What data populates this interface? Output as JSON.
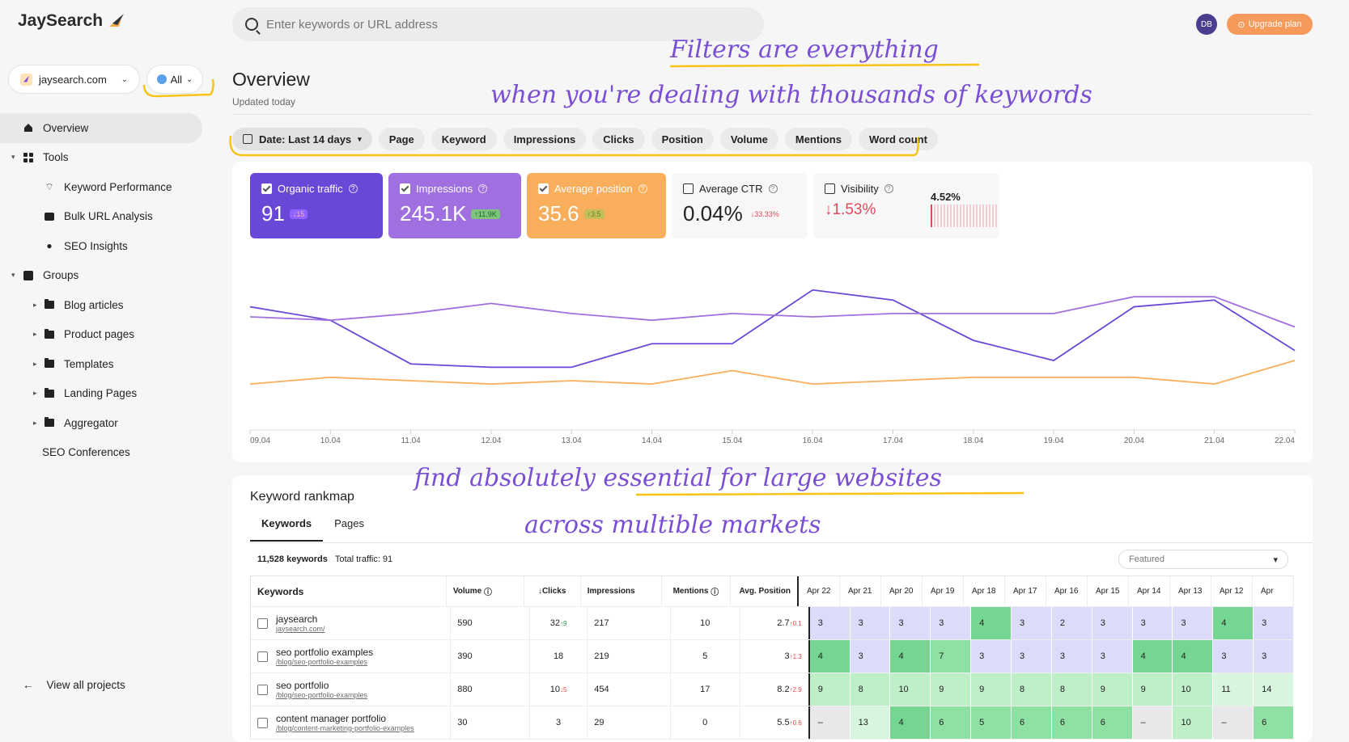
{
  "app": {
    "name": "JaySearch"
  },
  "project": {
    "name": "jaysearch.com",
    "scope": "All"
  },
  "search": {
    "placeholder": "Enter keywords or URL address"
  },
  "user": {
    "initials": "DB",
    "upgrade": "Upgrade plan"
  },
  "nav": {
    "overview": "Overview",
    "tools": "Tools",
    "keyword_performance": "Keyword Performance",
    "bulk_url": "Bulk URL Analysis",
    "seo_insights": "SEO Insights",
    "groups": "Groups",
    "blog": "Blog articles",
    "product": "Product pages",
    "templates": "Templates",
    "landing": "Landing Pages",
    "aggregator": "Aggregator",
    "conferences": "SEO Conferences",
    "view_all": "View all projects"
  },
  "page": {
    "title": "Overview",
    "updated": "Updated today"
  },
  "filters": {
    "date": "Date: Last 14 days",
    "items": [
      "Page",
      "Keyword",
      "Impressions",
      "Clicks",
      "Position",
      "Volume",
      "Mentions",
      "Word count"
    ]
  },
  "metrics": {
    "organic": {
      "label": "Organic traffic",
      "value": "91",
      "delta": "↓15"
    },
    "impressions": {
      "label": "Impressions",
      "value": "245.1K",
      "delta": "↑11.9K"
    },
    "position": {
      "label": "Average position",
      "value": "35.6",
      "delta": "↑3.5"
    },
    "ctr": {
      "label": "Average CTR",
      "value": "0.04%",
      "delta": "↓33.33%"
    },
    "visibility": {
      "label": "Visibility",
      "value": "↓1.53%",
      "level": "4.52%"
    }
  },
  "colors": {
    "organic": "#6a48d7",
    "impressions": "#a070e0",
    "position": "#f9ae5b",
    "red": "#e2485a"
  },
  "chart_data": {
    "type": "line",
    "categories": [
      "09.04",
      "10.04",
      "11.04",
      "12.04",
      "13.04",
      "14.04",
      "15.04",
      "16.04",
      "17.04",
      "18.04",
      "19.04",
      "20.04",
      "21.04",
      "22.04"
    ],
    "series": [
      {
        "name": "Organic traffic",
        "values": [
          95,
          91,
          78,
          77,
          77,
          84,
          84,
          100,
          97,
          85,
          79,
          95,
          97,
          82
        ]
      },
      {
        "name": "Impressions",
        "values": [
          92,
          91,
          93,
          96,
          93,
          91,
          93,
          92,
          93,
          93,
          93,
          98,
          98,
          89
        ]
      },
      {
        "name": "Average position",
        "values": [
          72,
          74,
          73,
          72,
          73,
          72,
          76,
          72,
          73,
          74,
          74,
          74,
          72,
          79
        ]
      }
    ],
    "ylim": [
      60,
      105
    ]
  },
  "rankmap": {
    "title": "Keyword rankmap",
    "tabs": [
      "Keywords",
      "Pages"
    ],
    "count": "11,528 keywords",
    "traffic": "Total traffic: 91",
    "sort": "Featured",
    "headers": {
      "keywords": "Keywords",
      "volume": "Volume",
      "clicks": "↓Clicks",
      "impressions": "Impressions",
      "mentions": "Mentions",
      "position": "Avg. Position"
    },
    "dates": [
      "Apr 22",
      "Apr 21",
      "Apr 20",
      "Apr 19",
      "Apr 18",
      "Apr 17",
      "Apr 16",
      "Apr 15",
      "Apr 14",
      "Apr 13",
      "Apr 12",
      "Apr"
    ],
    "rows": [
      {
        "kw": "jaysearch",
        "url": "jaysearch.com/",
        "volume": "590",
        "clicks": "32",
        "cdelta": "↑9",
        "impr": "217",
        "mentions": "10",
        "pos": "2.7",
        "pdelta": "↑0.1",
        "ranks": [
          "3",
          "3",
          "3",
          "3",
          "4",
          "3",
          "2",
          "3",
          "3",
          "3",
          "4",
          "3"
        ]
      },
      {
        "kw": "seo portfolio examples",
        "url": "/blog/seo-portfolio-examples",
        "volume": "390",
        "clicks": "18",
        "cdelta": "",
        "impr": "219",
        "mentions": "5",
        "pos": "3",
        "pdelta": "↑1.3",
        "ranks": [
          "4",
          "3",
          "4",
          "7",
          "3",
          "3",
          "3",
          "3",
          "4",
          "4",
          "3",
          "3"
        ]
      },
      {
        "kw": "seo portfolio",
        "url": "/blog/seo-portfolio-examples",
        "volume": "880",
        "clicks": "10",
        "cdelta": "↓5",
        "impr": "454",
        "mentions": "17",
        "pos": "8.2",
        "pdelta": "↑2.9",
        "ranks": [
          "9",
          "8",
          "10",
          "9",
          "9",
          "8",
          "8",
          "9",
          "9",
          "10",
          "11",
          "14"
        ]
      },
      {
        "kw": "content manager portfolio",
        "url": "/blog/content-marketing-portfolio-examples",
        "volume": "30",
        "clicks": "3",
        "cdelta": "",
        "impr": "29",
        "mentions": "0",
        "pos": "5.5",
        "pdelta": "↑0.6",
        "ranks": [
          "–",
          "13",
          "4",
          "6",
          "5",
          "6",
          "6",
          "6",
          "–",
          "10",
          "–",
          "6"
        ]
      }
    ]
  },
  "annotations": {
    "a1": "Filters are everything",
    "a2": "when you're dealing with thousands of keywords",
    "a3": "find absolutely essential for large websites",
    "a4": "across multible markets"
  }
}
